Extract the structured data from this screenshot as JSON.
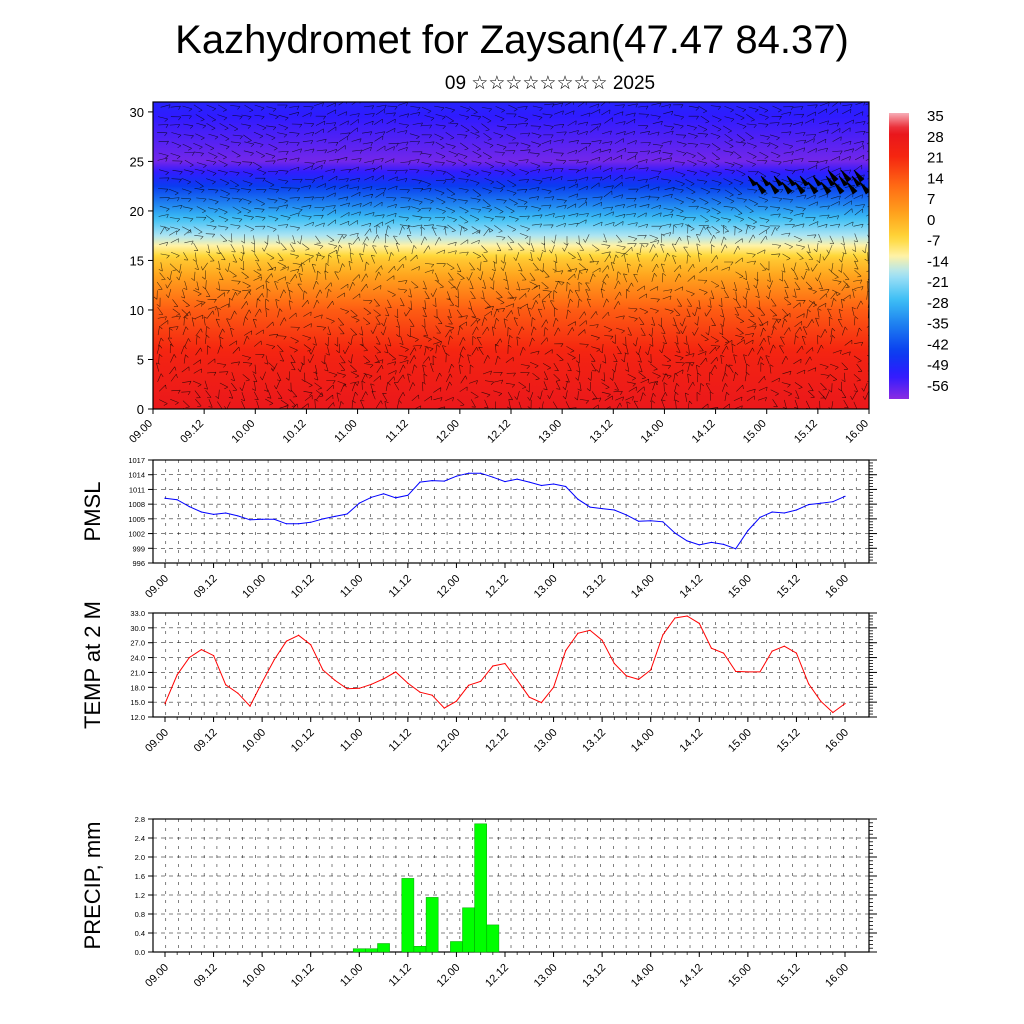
{
  "header": {
    "title": "Kazhydromet for Zaysan(47.47 84.37)",
    "subtitle": "09 ☆☆☆☆☆☆☆☆ 2025"
  },
  "colors": {
    "pmsl_line": "#0000ff",
    "temp_line": "#ff0000",
    "precip_bar": "#00ff00",
    "precip_bar_edge": "#00a000"
  },
  "chart_data": [
    {
      "type": "heatmap",
      "title": "",
      "x_ticks": [
        "09.00",
        "09.12",
        "10.00",
        "10.12",
        "11.00",
        "11.12",
        "12.00",
        "12.12",
        "13.00",
        "13.12",
        "14.00",
        "14.12",
        "15.00",
        "15.12",
        "16.00"
      ],
      "y_ticks": [
        0,
        5,
        10,
        15,
        20,
        25,
        30
      ],
      "ylim": [
        0,
        31
      ],
      "colorbar_labels": [
        "35",
        "28",
        "21",
        "14",
        "7",
        "0",
        "-7",
        "-14",
        "-21",
        "-28",
        "-35",
        "-42",
        "-49",
        "-56"
      ],
      "colorbar_range": [
        -60,
        38
      ],
      "temperature_profile": [
        [
          0,
          30
        ],
        [
          5,
          25
        ],
        [
          10,
          15
        ],
        [
          15,
          -2
        ],
        [
          17,
          -14
        ],
        [
          20,
          -30
        ],
        [
          25,
          -58
        ],
        [
          31,
          -50
        ]
      ],
      "overlay": "wind barbs"
    },
    {
      "type": "line",
      "ylabel": "PMSL",
      "x_ticks": [
        "09.00",
        "09.12",
        "10.00",
        "10.12",
        "11.00",
        "11.12",
        "12.00",
        "12.12",
        "13.00",
        "13.12",
        "14.00",
        "14.12",
        "15.00",
        "15.12",
        "16.00"
      ],
      "y_ticks": [
        "996",
        "999",
        "1002",
        "1005",
        "1008",
        "1011",
        "1014",
        "1017"
      ],
      "ylim": [
        996,
        1017
      ],
      "xlim": [
        0,
        168
      ],
      "grid": true,
      "series": [
        {
          "x": [
            0,
            3,
            6,
            9,
            12,
            15,
            18,
            21,
            24,
            27,
            30,
            33,
            36,
            39,
            42,
            45,
            48,
            51,
            54,
            57,
            60,
            63,
            66,
            69,
            72,
            75,
            78,
            81,
            84,
            87,
            90,
            93,
            96,
            99,
            102,
            105,
            108,
            111,
            114,
            117,
            120,
            123,
            126,
            129,
            132,
            135,
            138,
            141,
            144,
            147,
            150,
            153,
            156,
            159,
            162,
            165,
            168
          ],
          "values": [
            1009.2,
            1008.9,
            1007.5,
            1006.4,
            1005.9,
            1006.2,
            1005.6,
            1004.8,
            1004.9,
            1004.9,
            1004.0,
            1004.0,
            1004.3,
            1005.0,
            1005.5,
            1006.0,
            1008.2,
            1009.4,
            1010.1,
            1009.3,
            1009.8,
            1012.5,
            1012.8,
            1012.7,
            1013.7,
            1014.3,
            1014.3,
            1013.5,
            1012.6,
            1013.1,
            1012.5,
            1011.8,
            1012.1,
            1011.6,
            1009.0,
            1007.4,
            1007.1,
            1006.8,
            1005.8,
            1004.5,
            1004.6,
            1004.4,
            1002.1,
            1000.5,
            999.7,
            1000.2,
            999.8,
            998.9,
            1002.6,
            1005.3,
            1006.4,
            1006.2,
            1006.8,
            1007.9,
            1008.2,
            1008.5,
            1009.6
          ]
        }
      ]
    },
    {
      "type": "line",
      "ylabel": "TEMP at 2 M",
      "x_ticks": [
        "09.00",
        "09.12",
        "10.00",
        "10.12",
        "11.00",
        "11.12",
        "12.00",
        "12.12",
        "13.00",
        "13.12",
        "14.00",
        "14.12",
        "15.00",
        "15.12",
        "16.00"
      ],
      "y_ticks": [
        "12.0",
        "15.0",
        "18.0",
        "21.0",
        "24.0",
        "27.0",
        "30.0",
        "33.0"
      ],
      "ylim": [
        12,
        33
      ],
      "xlim": [
        0,
        168
      ],
      "grid": true,
      "series": [
        {
          "x": [
            0,
            3,
            6,
            9,
            12,
            15,
            18,
            21,
            24,
            27,
            30,
            33,
            36,
            39,
            42,
            45,
            48,
            51,
            54,
            57,
            60,
            63,
            66,
            69,
            72,
            75,
            78,
            81,
            84,
            87,
            90,
            93,
            96,
            99,
            102,
            105,
            108,
            111,
            114,
            117,
            120,
            123,
            126,
            129,
            132,
            135,
            138,
            141,
            144,
            147,
            150,
            153,
            156,
            159,
            162,
            165,
            168
          ],
          "values": [
            14.7,
            20.5,
            24.0,
            25.6,
            24.4,
            18.5,
            16.8,
            14.2,
            19.0,
            23.6,
            27.3,
            28.5,
            26.6,
            21.5,
            19.4,
            17.7,
            17.8,
            18.6,
            19.7,
            21.1,
            18.8,
            17.0,
            16.4,
            13.8,
            15.2,
            18.4,
            19.2,
            22.3,
            22.8,
            19.5,
            16.0,
            14.9,
            18.0,
            25.4,
            28.9,
            29.5,
            27.5,
            22.8,
            20.3,
            19.6,
            21.5,
            28.6,
            32.0,
            32.4,
            30.9,
            25.9,
            24.9,
            21.2,
            21.1,
            21.1,
            25.3,
            26.3,
            24.9,
            18.7,
            15.2,
            12.9,
            14.7
          ]
        }
      ]
    },
    {
      "type": "bar",
      "ylabel": "PRECIP, mm",
      "x_ticks": [
        "09.00",
        "09.12",
        "10.00",
        "10.12",
        "11.00",
        "11.12",
        "12.00",
        "12.12",
        "13.00",
        "13.12",
        "14.00",
        "14.12",
        "15.00",
        "15.12",
        "16.00"
      ],
      "y_ticks": [
        "0.0",
        "0.4",
        "0.8",
        "1.2",
        "1.6",
        "2.0",
        "2.4",
        "2.8"
      ],
      "ylim": [
        0,
        2.8
      ],
      "xlim": [
        0,
        168
      ],
      "grid": true,
      "x": [
        48,
        51,
        54,
        57,
        60,
        63,
        66,
        69,
        72,
        75,
        78,
        81
      ],
      "values": [
        0.07,
        0.07,
        0.18,
        0.0,
        1.55,
        0.12,
        1.15,
        0.0,
        0.22,
        0.93,
        2.7,
        0.57
      ]
    }
  ]
}
